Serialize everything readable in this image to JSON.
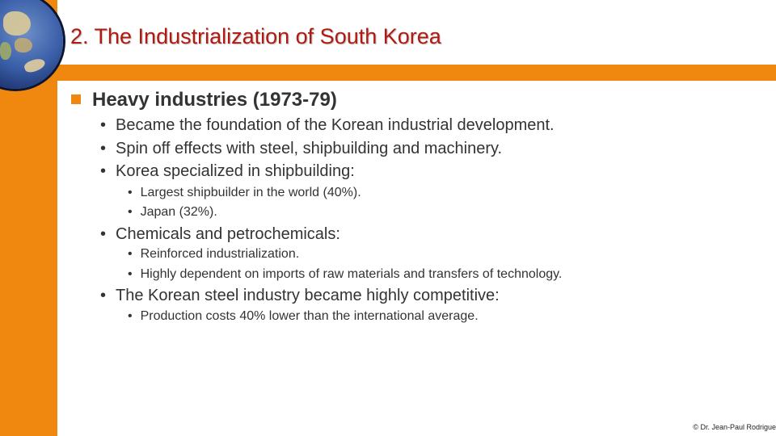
{
  "title": "2. The Industrialization of South Korea",
  "section": {
    "heading": "Heavy industries (1973-79)",
    "bullet_glyph": "•",
    "items": [
      {
        "text": "Became the foundation of the Korean industrial development.",
        "sub": []
      },
      {
        "text": "Spin off effects with steel, shipbuilding and machinery.",
        "sub": []
      },
      {
        "text": "Korea specialized in shipbuilding:",
        "sub": [
          "Largest shipbuilder in the world (40%).",
          "Japan (32%)."
        ]
      },
      {
        "text": "Chemicals and petrochemicals:",
        "sub": [
          "Reinforced industrialization.",
          "Highly dependent on imports of raw materials and transfers of technology."
        ]
      },
      {
        "text": "The Korean steel industry became highly competitive:",
        "sub": [
          "Production costs 40% lower than the international average."
        ]
      }
    ]
  },
  "footer": "© Dr. Jean-Paul Rodrigue",
  "colors": {
    "accent": "#F0870F",
    "title": "#B01A10",
    "text": "#333333"
  },
  "icons": {
    "logo": "globe-icon",
    "heading_marker": "square-bullet-icon"
  }
}
